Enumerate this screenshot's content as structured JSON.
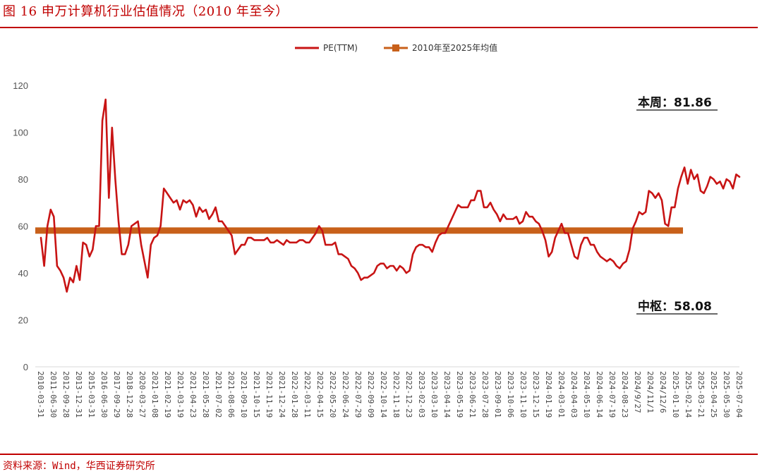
{
  "page": {
    "title": "图 16  申万计算机行业估值情况（2010 年至今）",
    "source": "资料来源：Wind，华西证券研究所",
    "colors": {
      "brand_red": "#c00000",
      "pe_line": "#c81414",
      "mean_line": "#c8601a"
    }
  },
  "chart_data": {
    "type": "line",
    "title": "",
    "xlabel": "",
    "ylabel": "",
    "ylim": [
      0,
      120
    ],
    "yticks": [
      0,
      20,
      40,
      60,
      80,
      100,
      120
    ],
    "grid": false,
    "legend_position": "top-center",
    "legend": [
      {
        "name": "PE(TTM)",
        "color": "#c81414",
        "style": "line"
      },
      {
        "name": "2010年至2025年均值",
        "color": "#c8601a",
        "style": "line-square"
      }
    ],
    "x_tick_labels": [
      "2010-03-31",
      "2011-06-30",
      "2012-09-28",
      "2013-12-31",
      "2015-03-31",
      "2016-06-30",
      "2017-09-29",
      "2018-12-28",
      "2020-03-27",
      "2021-01-08",
      "2021-02-19",
      "2021-03-19",
      "2021-04-23",
      "2021-05-28",
      "2021-07-02",
      "2021-08-06",
      "2021-09-10",
      "2021-10-15",
      "2021-11-19",
      "2021-12-24",
      "2022-01-28",
      "2022-03-11",
      "2022-04-15",
      "2022-05-20",
      "2022-06-24",
      "2022-07-29",
      "2022-09-09",
      "2022-10-14",
      "2022-11-18",
      "2022-12-23",
      "2023-02-03",
      "2023-03-10",
      "2023-04-14",
      "2023-05-19",
      "2023-06-21",
      "2023-07-28",
      "2023-09-01",
      "2023-10-06",
      "2023-11-10",
      "2023-12-15",
      "2024-01-19",
      "2024-03-01",
      "2024-04-03",
      "2024-05-10",
      "2024-06-14",
      "2024-07-19",
      "2024-08-23",
      "2024/9/27",
      "2024/11/1",
      "2024/12/6",
      "2025-01-10",
      "2025-02-14",
      "2025-03-21",
      "2025-04-25",
      "2025-05-30",
      "2025-07-04"
    ],
    "series": [
      {
        "name": "PE(TTM)",
        "color": "#c81414",
        "values": [
          55,
          43,
          60,
          67,
          64,
          43,
          41,
          38,
          32,
          38,
          36,
          43,
          37,
          53,
          52,
          47,
          50,
          60,
          60,
          105,
          114,
          72,
          102,
          80,
          62,
          48,
          48,
          52,
          60,
          61,
          62,
          52,
          45,
          38,
          52,
          55,
          56,
          60,
          76,
          74,
          72,
          70,
          71,
          67,
          71,
          70,
          71,
          69,
          64,
          68,
          66,
          67,
          63,
          65,
          68,
          62,
          62,
          60,
          58,
          56,
          48,
          50,
          52,
          52,
          55,
          55,
          54,
          54,
          54,
          54,
          55,
          53,
          53,
          54,
          53,
          52,
          54,
          53,
          53,
          53,
          54,
          54,
          53,
          53,
          55,
          57,
          60,
          58,
          52,
          52,
          52,
          53,
          48,
          48,
          47,
          46,
          43,
          42,
          40,
          37,
          38,
          38,
          39,
          40,
          43,
          44,
          44,
          42,
          43,
          43,
          41,
          43,
          42,
          40,
          41,
          48,
          51,
          52,
          52,
          51,
          51,
          49,
          53,
          56,
          57,
          57,
          60,
          63,
          66,
          69,
          68,
          68,
          68,
          71,
          71,
          75,
          75,
          68,
          68,
          70,
          67,
          65,
          62,
          65,
          63,
          63,
          63,
          64,
          61,
          62,
          66,
          64,
          64,
          62,
          61,
          58,
          54,
          47,
          49,
          55,
          58,
          61,
          57,
          57,
          52,
          47,
          46,
          52,
          55,
          55,
          52,
          52,
          49,
          47,
          46,
          45,
          46,
          45,
          43,
          42,
          44,
          45,
          50,
          59,
          62,
          66,
          65,
          66,
          75,
          74,
          72,
          74,
          71,
          61,
          60,
          68,
          68,
          76,
          81,
          85,
          78,
          84,
          80,
          82,
          75,
          74,
          77,
          81,
          80,
          78,
          79,
          76,
          80,
          79,
          76,
          82,
          81
        ]
      },
      {
        "name": "2010年至2025年均值",
        "color": "#c8601a",
        "values": [
          58.08,
          58.08
        ]
      }
    ],
    "annotations": [
      {
        "id": "current",
        "text": "本周：81.86",
        "value": 81.86
      },
      {
        "id": "median",
        "text": "中枢：58.08",
        "value": 58.08
      }
    ]
  }
}
